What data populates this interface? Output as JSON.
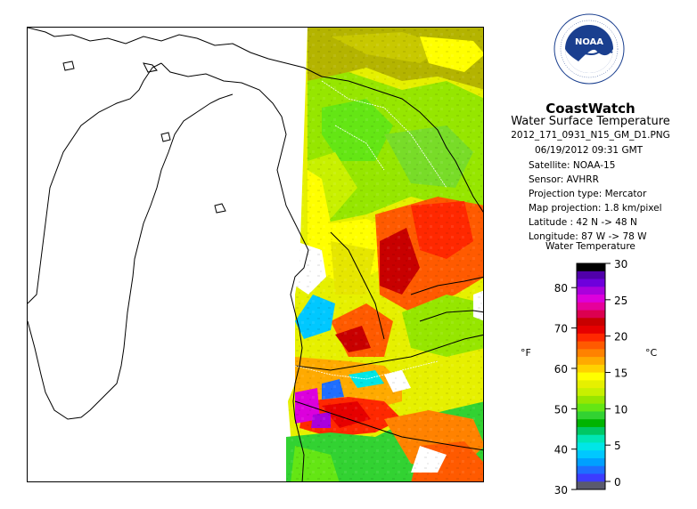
{
  "header": {
    "brand": "CoastWatch",
    "product": "Water Surface Temperature",
    "filename": "2012_171_0931_N15_GM_D1.PNG",
    "timestamp": "06/19/2012   09:31 GMT"
  },
  "metadata": [
    {
      "key": "satellite",
      "text": "Satellite: NOAA-15"
    },
    {
      "key": "sensor",
      "text": "Sensor: AVHRR"
    },
    {
      "key": "projection",
      "text": "Projection type:  Mercator"
    },
    {
      "key": "resolution",
      "text": "Map projection: 1.8 km/pixel"
    },
    {
      "key": "latitude",
      "text": "Latitude : 42 N  -> 48 N"
    },
    {
      "key": "longitude",
      "text": "Longitude: 87 W  -> 78 W"
    }
  ],
  "logo": {
    "text": "NOAA",
    "ring_top": "NATIONAL OCEANIC AND ATMOSPHERIC ADMINISTRATION",
    "ring_bottom": "U.S. DEPARTMENT OF COMMERCE"
  },
  "legend": {
    "title": "Water Temperature",
    "unit_f": "°F",
    "unit_c": "°C",
    "f_ticks": [
      "30",
      "40",
      "50",
      "60",
      "70",
      "80"
    ],
    "c_ticks": [
      "0",
      "5",
      "10",
      "15",
      "20",
      "25",
      "30"
    ],
    "colors": [
      "#5a5a6e",
      "#3c3cff",
      "#1e6eff",
      "#00a0ff",
      "#00c8ff",
      "#00e6e6",
      "#00e6b4",
      "#00c864",
      "#00b400",
      "#32d232",
      "#64e614",
      "#96e600",
      "#c8f000",
      "#e6f000",
      "#ffff00",
      "#ffd200",
      "#ffaa00",
      "#ff8200",
      "#ff5a00",
      "#ff2800",
      "#e60000",
      "#c80000",
      "#dc0050",
      "#e6009b",
      "#dc00dc",
      "#aa00dc",
      "#6e00dc",
      "#5000aa",
      "#000000"
    ]
  }
}
